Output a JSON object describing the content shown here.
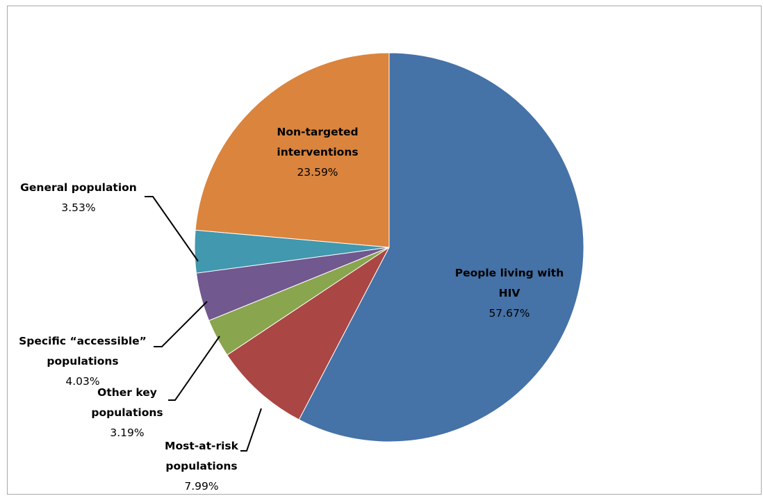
{
  "chart_data": {
    "type": "pie",
    "title": "",
    "slices": [
      {
        "name_lines": [
          "People living with",
          "HIV"
        ],
        "value_label": "57.67%",
        "value": 57.67,
        "color": "#4572a7"
      },
      {
        "name_lines": [
          "Most-at-risk",
          "populations"
        ],
        "value_label": "7.99%",
        "value": 7.99,
        "color": "#aa4643"
      },
      {
        "name_lines": [
          "Other key",
          "populations"
        ],
        "value_label": "3.19%",
        "value": 3.19,
        "color": "#89a54e"
      },
      {
        "name_lines": [
          "Specific “accessible”",
          "populations"
        ],
        "value_label": "4.03%",
        "value": 4.03,
        "color": "#71588f"
      },
      {
        "name_lines": [
          "General population"
        ],
        "value_label": "3.53%",
        "value": 3.53,
        "color": "#4198af"
      },
      {
        "name_lines": [
          "Non-targeted",
          "interventions"
        ],
        "value_label": "23.59%",
        "value": 23.59,
        "color": "#db843d"
      }
    ],
    "legend": "none",
    "data_labels": "category name and percentage"
  }
}
